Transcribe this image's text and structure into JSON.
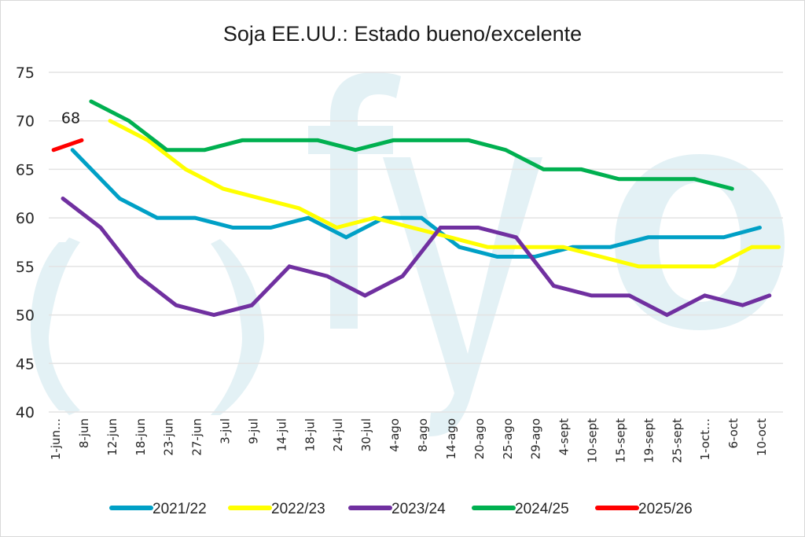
{
  "chart_data": {
    "type": "line",
    "title": "Soja EE.UU.: Estado bueno/excelente",
    "xlabel": "",
    "ylabel": "",
    "ylim": [
      40,
      75
    ],
    "yticks": [
      40,
      45,
      50,
      55,
      60,
      65,
      70,
      75
    ],
    "grid": true,
    "legend_position": "bottom",
    "categories": [
      "1-jun…",
      "8-jun",
      "12-jun",
      "18-jun",
      "23-jun",
      "27-jun",
      "3-jul",
      "9-jul",
      "14-jul",
      "18-jul",
      "24-jul",
      "30-jul",
      "4-ago",
      "8-ago",
      "14-ago",
      "20-ago",
      "25-ago",
      "29-ago",
      "4-sept",
      "10-sept",
      "15-sept",
      "19-sept",
      "25-sept",
      "1-oct…",
      "6-oct",
      "10-oct"
    ],
    "x_units": "category index (continuous, 0 = start of axis)",
    "series": [
      {
        "name": "2021/22",
        "color": "#00a0c6",
        "x": [
          0.84,
          2.51,
          3.84,
          5.18,
          6.52,
          7.86,
          9.19,
          10.53,
          11.87,
          13.2,
          14.54,
          15.88,
          17.21,
          18.55,
          19.89,
          21.23,
          22.56,
          23.9,
          25.18
        ],
        "values": [
          67,
          62,
          60,
          60,
          59,
          59,
          60,
          58,
          60,
          60,
          57,
          56,
          56,
          57,
          57,
          58,
          58,
          58,
          59
        ]
      },
      {
        "name": "2022/23",
        "color": "#ffff00",
        "x": [
          2.17,
          3.51,
          4.85,
          6.18,
          7.52,
          8.86,
          10.2,
          11.53,
          12.87,
          14.21,
          15.54,
          16.88,
          18.22,
          19.55,
          20.89,
          22.23,
          23.57,
          24.9,
          25.85
        ],
        "values": [
          70,
          68,
          65,
          63,
          62,
          61,
          59,
          60,
          59,
          58,
          57,
          57,
          57,
          56,
          55,
          55,
          55,
          57,
          57
        ]
      },
      {
        "name": "2023/24",
        "color": "#7030a0",
        "x": [
          0.5,
          1.84,
          3.18,
          4.51,
          5.85,
          7.19,
          8.52,
          9.86,
          11.2,
          12.53,
          13.87,
          15.21,
          16.55,
          17.88,
          19.22,
          20.56,
          21.89,
          23.23,
          24.57,
          25.52
        ],
        "values": [
          62,
          59,
          54,
          51,
          50,
          51,
          55,
          54,
          52,
          54,
          59,
          59,
          58,
          53,
          52,
          52,
          50,
          52,
          51,
          52
        ]
      },
      {
        "name": "2024/25",
        "color": "#00b050",
        "x": [
          1.5,
          2.84,
          4.18,
          5.52,
          6.85,
          8.19,
          9.53,
          10.86,
          12.2,
          13.54,
          14.87,
          16.18,
          17.52,
          18.86,
          20.19,
          21.53,
          22.87,
          24.2
        ],
        "values": [
          72,
          70,
          67,
          67,
          68,
          68,
          68,
          67,
          68,
          68,
          68,
          67,
          65,
          65,
          64,
          64,
          64,
          63
        ]
      },
      {
        "name": "2025/26",
        "color": "#ff0000",
        "x": [
          0.17,
          1.17
        ],
        "values": [
          67,
          68
        ],
        "data_labels": [
          null,
          "68"
        ]
      }
    ]
  },
  "watermark": {
    "text": "( ) fyo",
    "color": "#e3f1f5"
  }
}
